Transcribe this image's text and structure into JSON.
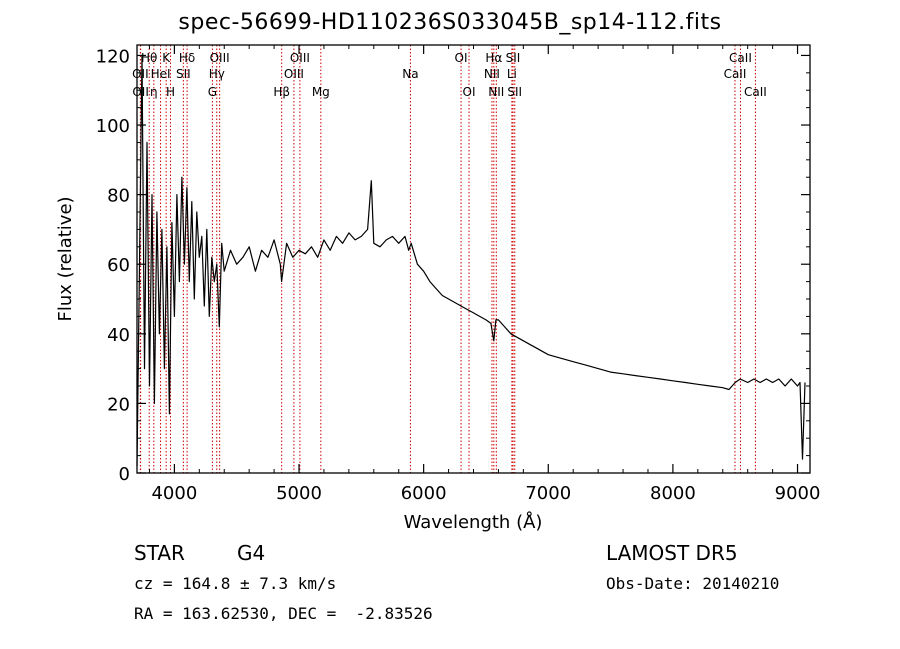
{
  "title": "spec-56699-HD110236S033045B_sp14-112.fits",
  "footer": {
    "object_class": "STAR",
    "subclass": "G4",
    "survey": "LAMOST DR5",
    "cz": "cz = 164.8 ± 7.3 km/s",
    "obs_date": "Obs-Date: 20140210",
    "coords": "RA = 163.62530, DEC =  -2.83526"
  },
  "colors": {
    "axis": "#000000",
    "spectrum": "#000000",
    "line_marker": "#cc0000",
    "background": "#ffffff"
  },
  "chart_data": {
    "type": "line",
    "title": "spec-56699-HD110236S033045B_sp14-112.fits",
    "xlabel": "Wavelength (Å)",
    "ylabel": "Flux (relative)",
    "xlim": [
      3700,
      9100
    ],
    "ylim": [
      0,
      123
    ],
    "xticks": [
      4000,
      5000,
      6000,
      7000,
      8000,
      9000
    ],
    "yticks": [
      0,
      20,
      40,
      60,
      80,
      100,
      120
    ],
    "grid": false,
    "series": [
      {
        "x": [
          3700,
          3720,
          3740,
          3760,
          3780,
          3800,
          3820,
          3840,
          3860,
          3880,
          3900,
          3920,
          3940,
          3960,
          3980,
          4000,
          4020,
          4040,
          4060,
          4080,
          4100,
          4120,
          4140,
          4160,
          4180,
          4200,
          4220,
          4240,
          4260,
          4280,
          4300,
          4320,
          4340,
          4360,
          4380,
          4400,
          4450,
          4500,
          4550,
          4600,
          4650,
          4700,
          4750,
          4800,
          4850,
          4860,
          4900,
          4950,
          5000,
          5050,
          5100,
          5150,
          5200,
          5250,
          5300,
          5350,
          5400,
          5450,
          5500,
          5550,
          5580,
          5600,
          5650,
          5700,
          5750,
          5800,
          5850,
          5880,
          5900,
          5950,
          6000,
          6050,
          6100,
          6150,
          6200,
          6250,
          6300,
          6350,
          6400,
          6450,
          6500,
          6540,
          6563,
          6580,
          6600,
          6650,
          6700,
          6750,
          6800,
          6850,
          6900,
          6950,
          7000,
          7100,
          7200,
          7300,
          7400,
          7500,
          7600,
          7700,
          7800,
          7900,
          8000,
          8100,
          8200,
          8300,
          8400,
          8450,
          8500,
          8540,
          8600,
          8650,
          8700,
          8750,
          8800,
          8850,
          8900,
          8950,
          9000,
          9020,
          9040,
          9060
        ],
        "y": [
          2,
          60,
          120,
          30,
          95,
          25,
          80,
          20,
          75,
          40,
          70,
          30,
          65,
          17,
          72,
          45,
          80,
          55,
          85,
          60,
          82,
          55,
          78,
          50,
          75,
          62,
          68,
          48,
          70,
          45,
          62,
          55,
          60,
          42,
          66,
          58,
          64,
          60,
          62,
          65,
          58,
          64,
          62,
          67,
          60,
          55,
          66,
          62,
          64,
          63,
          65,
          62,
          67,
          64,
          68,
          66,
          69,
          67,
          68,
          70,
          84,
          66,
          65,
          67,
          68,
          66,
          68,
          64,
          66,
          60,
          58,
          55,
          53,
          51,
          50,
          49,
          48,
          47,
          46,
          45,
          44,
          43,
          38,
          44,
          44,
          42,
          40,
          39,
          38,
          37,
          36,
          35,
          34,
          33,
          32,
          31,
          30,
          29,
          28.5,
          28,
          27.5,
          27,
          26.5,
          26,
          25.5,
          25,
          24.5,
          24,
          26,
          27,
          26,
          27,
          26,
          27,
          26,
          27,
          25,
          27,
          25,
          26,
          4,
          26
        ]
      }
    ],
    "annotations": [
      {
        "label": "Hθ",
        "x": 3798,
        "row": 1
      },
      {
        "label": "OII",
        "x": 3727,
        "row": 2
      },
      {
        "label": "OII",
        "x": 3729,
        "row": 3
      },
      {
        "label": "η",
        "x": 3835,
        "row": 3
      },
      {
        "label": "K",
        "x": 3934,
        "row": 1
      },
      {
        "label": "HeI",
        "x": 3889,
        "row": 2
      },
      {
        "label": "H",
        "x": 3969,
        "row": 3
      },
      {
        "label": "Hδ",
        "x": 4102,
        "row": 1
      },
      {
        "label": "SII",
        "x": 4072,
        "row": 2
      },
      {
        "label": "OIII",
        "x": 4363,
        "row": 1
      },
      {
        "label": "Hγ",
        "x": 4340,
        "row": 2
      },
      {
        "label": "G",
        "x": 4305,
        "row": 3
      },
      {
        "label": "OIII",
        "x": 5007,
        "row": 1
      },
      {
        "label": "OIII",
        "x": 4959,
        "row": 2
      },
      {
        "label": "Hβ",
        "x": 4861,
        "row": 3
      },
      {
        "label": "Mg",
        "x": 5175,
        "row": 3
      },
      {
        "label": "Na",
        "x": 5894,
        "row": 2
      },
      {
        "label": "OI",
        "x": 6300,
        "row": 1
      },
      {
        "label": "OI",
        "x": 6364,
        "row": 3
      },
      {
        "label": "Hα",
        "x": 6563,
        "row": 1
      },
      {
        "label": "NII",
        "x": 6548,
        "row": 2
      },
      {
        "label": "NII",
        "x": 6583,
        "row": 3
      },
      {
        "label": "SII",
        "x": 6717,
        "row": 1
      },
      {
        "label": "Li",
        "x": 6708,
        "row": 2
      },
      {
        "label": "SII",
        "x": 6731,
        "row": 3
      },
      {
        "label": "CaII",
        "x": 8542,
        "row": 1
      },
      {
        "label": "CaII",
        "x": 8498,
        "row": 2
      },
      {
        "label": "CaII",
        "x": 8662,
        "row": 3
      }
    ]
  }
}
